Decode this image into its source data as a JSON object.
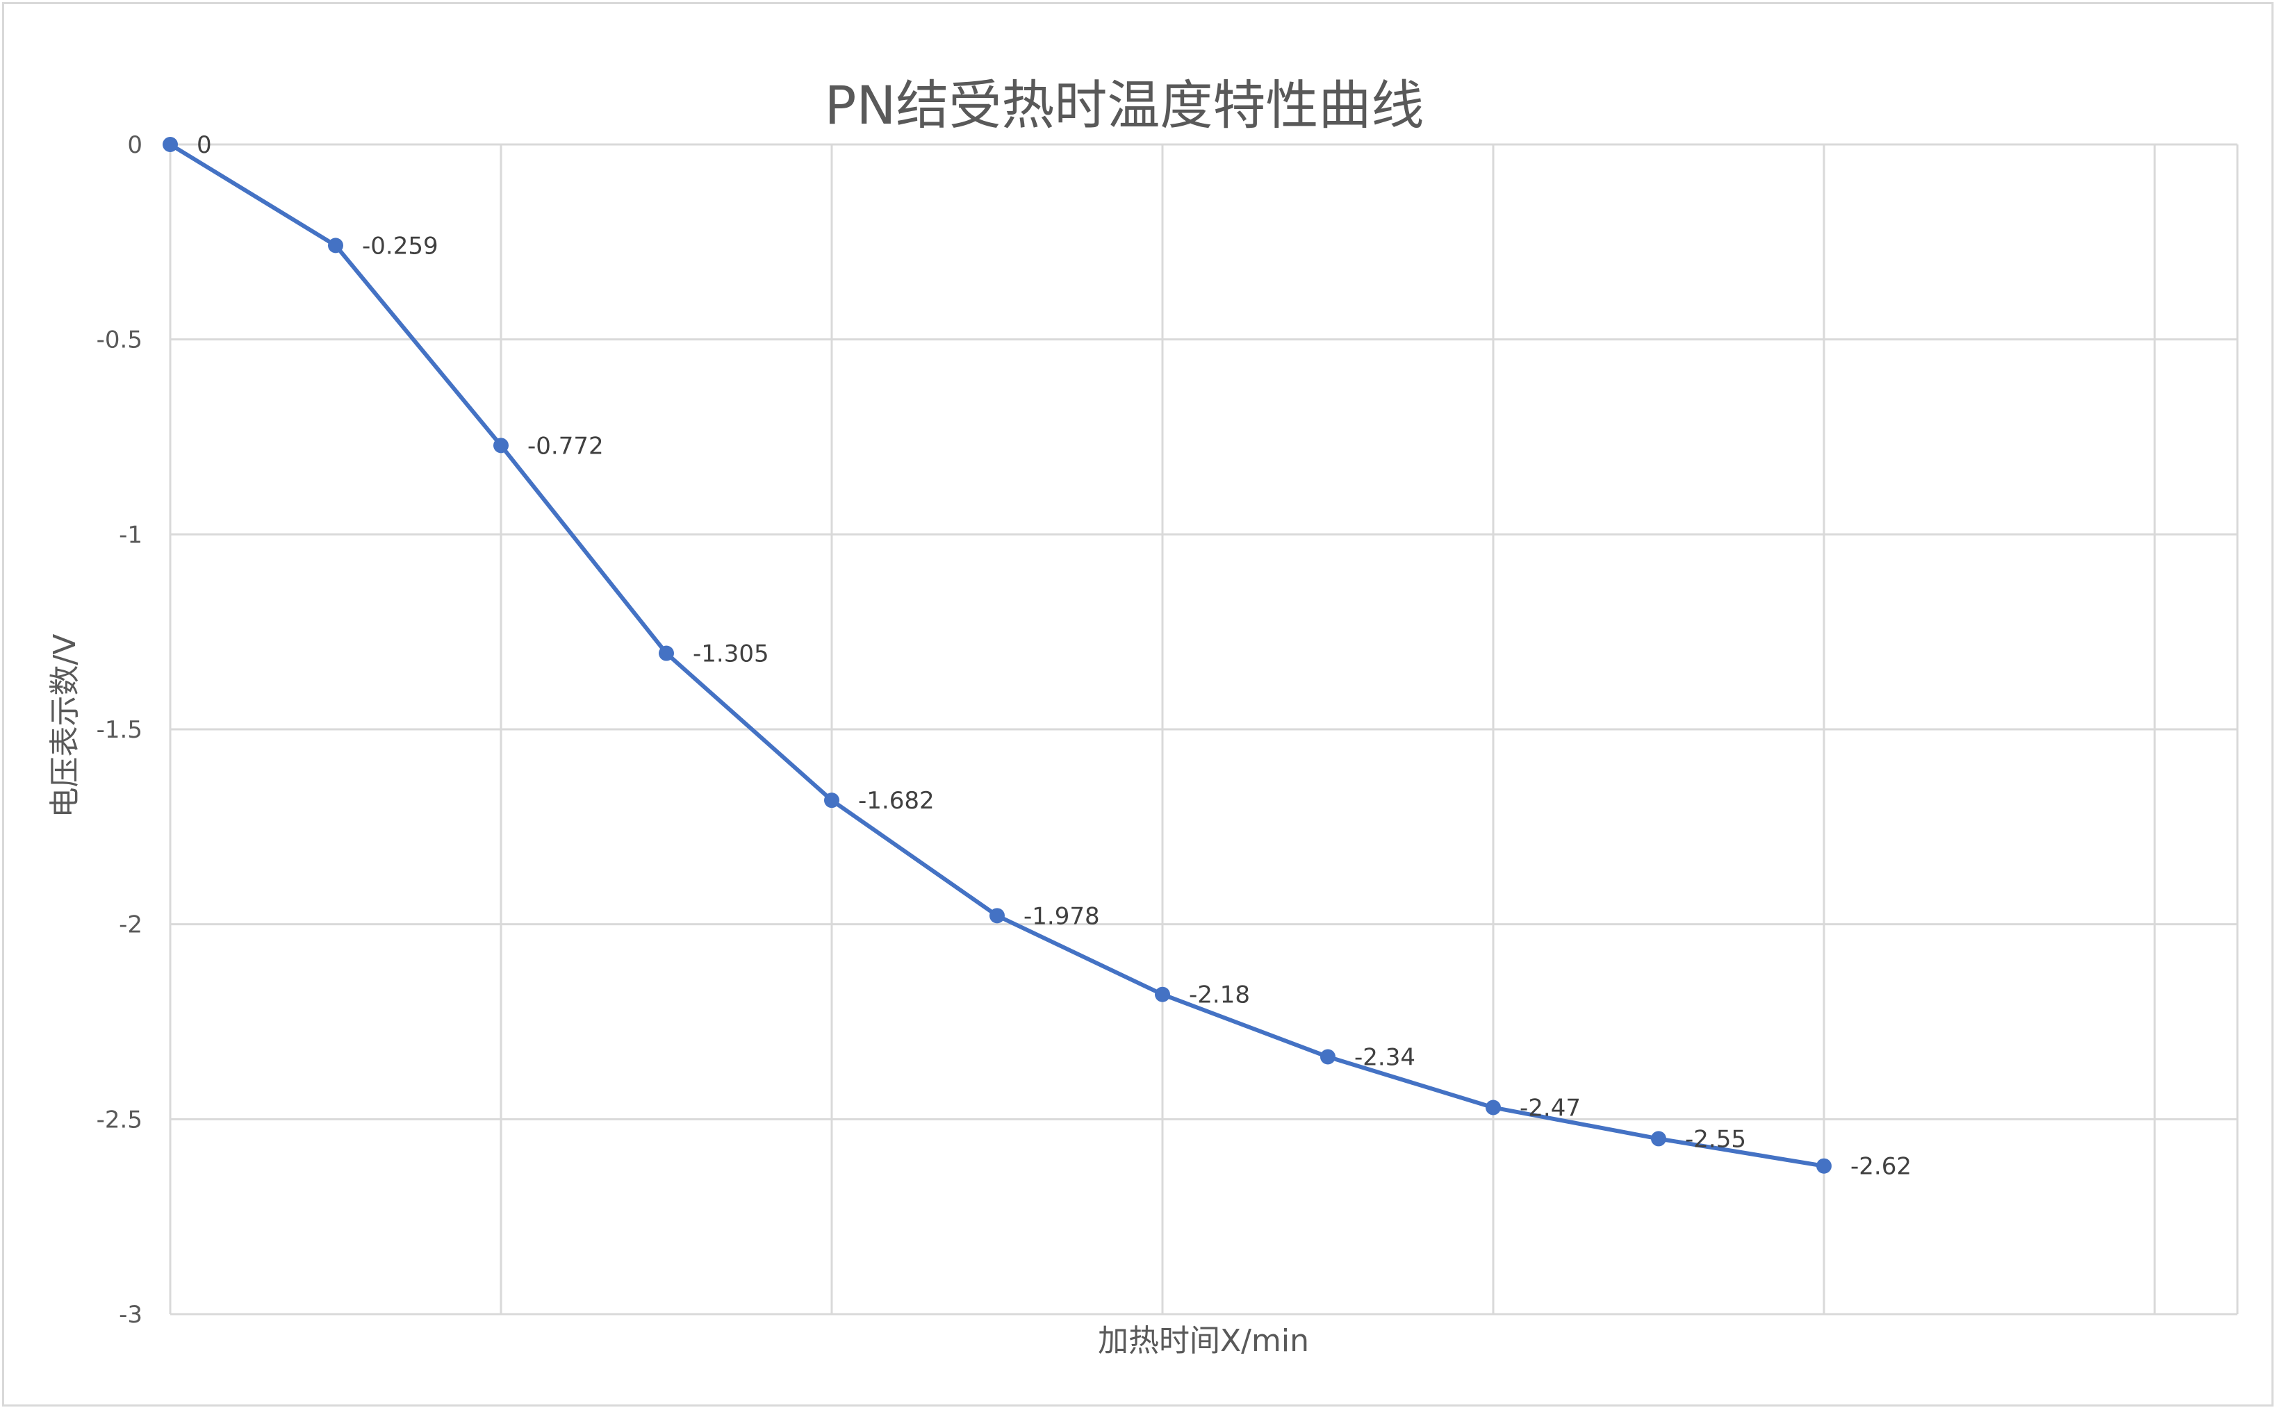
{
  "chart_data": {
    "type": "line",
    "title": "PN结受热时温度特性曲线",
    "xlabel": "加热时间X/min",
    "ylabel": "电压表示数/V",
    "ylim": [
      -3,
      0
    ],
    "yticks": [
      "0",
      "-0.5",
      "-1",
      "-1.5",
      "-2",
      "-2.5",
      "-3"
    ],
    "grid": true,
    "line_color": "#4472C4",
    "grid_color": "#d9d9d9",
    "series": [
      {
        "values": [
          0,
          -0.259,
          -0.772,
          -1.305,
          -1.682,
          -1.978,
          -2.18,
          -2.34,
          -2.47,
          -2.55,
          -2.62
        ],
        "labels": [
          "0",
          "-0.259",
          "-0.772",
          "-1.305",
          "-1.682",
          "-1.978",
          "-2.18",
          "-2.34",
          "-2.47",
          "-2.55",
          "-2.62"
        ]
      }
    ]
  }
}
